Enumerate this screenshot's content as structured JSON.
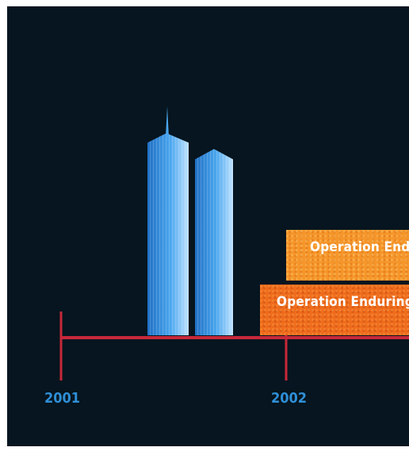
{
  "timeline": {
    "years": [
      "2001",
      "2002"
    ]
  },
  "bars": [
    {
      "label": "Operation Enduring Freedom",
      "color": "#f6962a"
    },
    {
      "label": "Operation Enduring Freedom",
      "color": "#ef6c1c"
    }
  ],
  "colors": {
    "background": "#06151f",
    "axis": "#c8283a",
    "towers": "#3f93e0",
    "year_text": "#2f8fd6"
  },
  "icons": {
    "towers": "twin-towers-icon"
  }
}
